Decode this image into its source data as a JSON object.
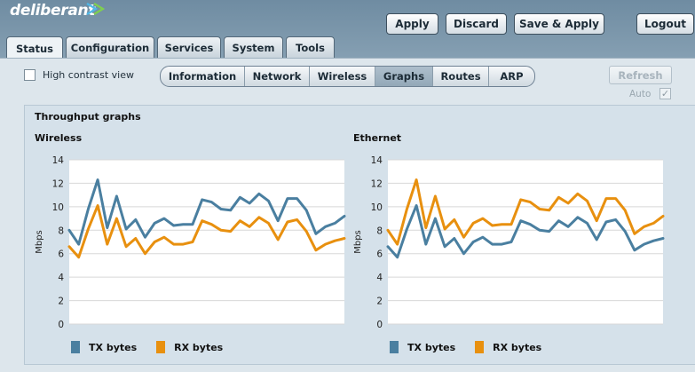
{
  "app": {
    "logo_text": "deliberant"
  },
  "header": {
    "buttons": {
      "apply": "Apply",
      "discard": "Discard",
      "save_apply": "Save & Apply",
      "logout": "Logout"
    }
  },
  "tabs": [
    "Status",
    "Configuration",
    "Services",
    "System",
    "Tools"
  ],
  "active_tab": "Status",
  "toolbar": {
    "high_contrast_label": "High contrast view",
    "high_contrast_checked": false,
    "subtabs": [
      "Information",
      "Network",
      "Wireless",
      "Graphs",
      "Routes",
      "ARP"
    ],
    "active_subtab": "Graphs",
    "refresh_label": "Refresh",
    "auto_label": "Auto",
    "auto_checked": true
  },
  "content": {
    "section_title": "Throughput graphs"
  },
  "colors": {
    "tx": "#4a7fa0",
    "rx": "#e8900f"
  },
  "chart_data": [
    {
      "type": "line",
      "title": "Wireless",
      "ylabel": "Mbps",
      "ylim": [
        0,
        14
      ],
      "yticks": [
        0,
        2,
        4,
        6,
        8,
        10,
        12,
        14
      ],
      "grid": true,
      "legend": "bottom-left",
      "series": [
        {
          "name": "TX bytes",
          "values": [
            8.0,
            6.8,
            9.8,
            12.3,
            8.2,
            10.9,
            8.1,
            8.9,
            7.4,
            8.6,
            9.0,
            8.4,
            8.5,
            8.5,
            10.6,
            10.4,
            9.8,
            9.7,
            10.8,
            10.3,
            11.1,
            10.5,
            8.8,
            10.7,
            10.7,
            9.7,
            7.7,
            8.3,
            8.6,
            9.2
          ]
        },
        {
          "name": "RX bytes",
          "values": [
            6.6,
            5.7,
            8.1,
            10.1,
            6.8,
            9.0,
            6.6,
            7.3,
            6.0,
            7.0,
            7.4,
            6.8,
            6.8,
            7.0,
            8.8,
            8.5,
            8.0,
            7.9,
            8.8,
            8.3,
            9.1,
            8.6,
            7.2,
            8.7,
            8.9,
            7.9,
            6.3,
            6.8,
            7.1,
            7.3
          ]
        }
      ]
    },
    {
      "type": "line",
      "title": "Ethernet",
      "ylabel": "Mbps",
      "ylim": [
        0,
        14
      ],
      "yticks": [
        0,
        2,
        4,
        6,
        8,
        10,
        12,
        14
      ],
      "grid": true,
      "legend": "bottom-left",
      "series": [
        {
          "name": "TX bytes",
          "values": [
            6.6,
            5.7,
            8.1,
            10.1,
            6.8,
            9.0,
            6.6,
            7.3,
            6.0,
            7.0,
            7.4,
            6.8,
            6.8,
            7.0,
            8.8,
            8.5,
            8.0,
            7.9,
            8.8,
            8.3,
            9.1,
            8.6,
            7.2,
            8.7,
            8.9,
            7.9,
            6.3,
            6.8,
            7.1,
            7.3
          ]
        },
        {
          "name": "RX bytes",
          "values": [
            8.0,
            6.8,
            9.8,
            12.3,
            8.2,
            10.9,
            8.1,
            8.9,
            7.4,
            8.6,
            9.0,
            8.4,
            8.5,
            8.5,
            10.6,
            10.4,
            9.8,
            9.7,
            10.8,
            10.3,
            11.1,
            10.5,
            8.8,
            10.7,
            10.7,
            9.7,
            7.7,
            8.3,
            8.6,
            9.2
          ]
        }
      ]
    }
  ]
}
